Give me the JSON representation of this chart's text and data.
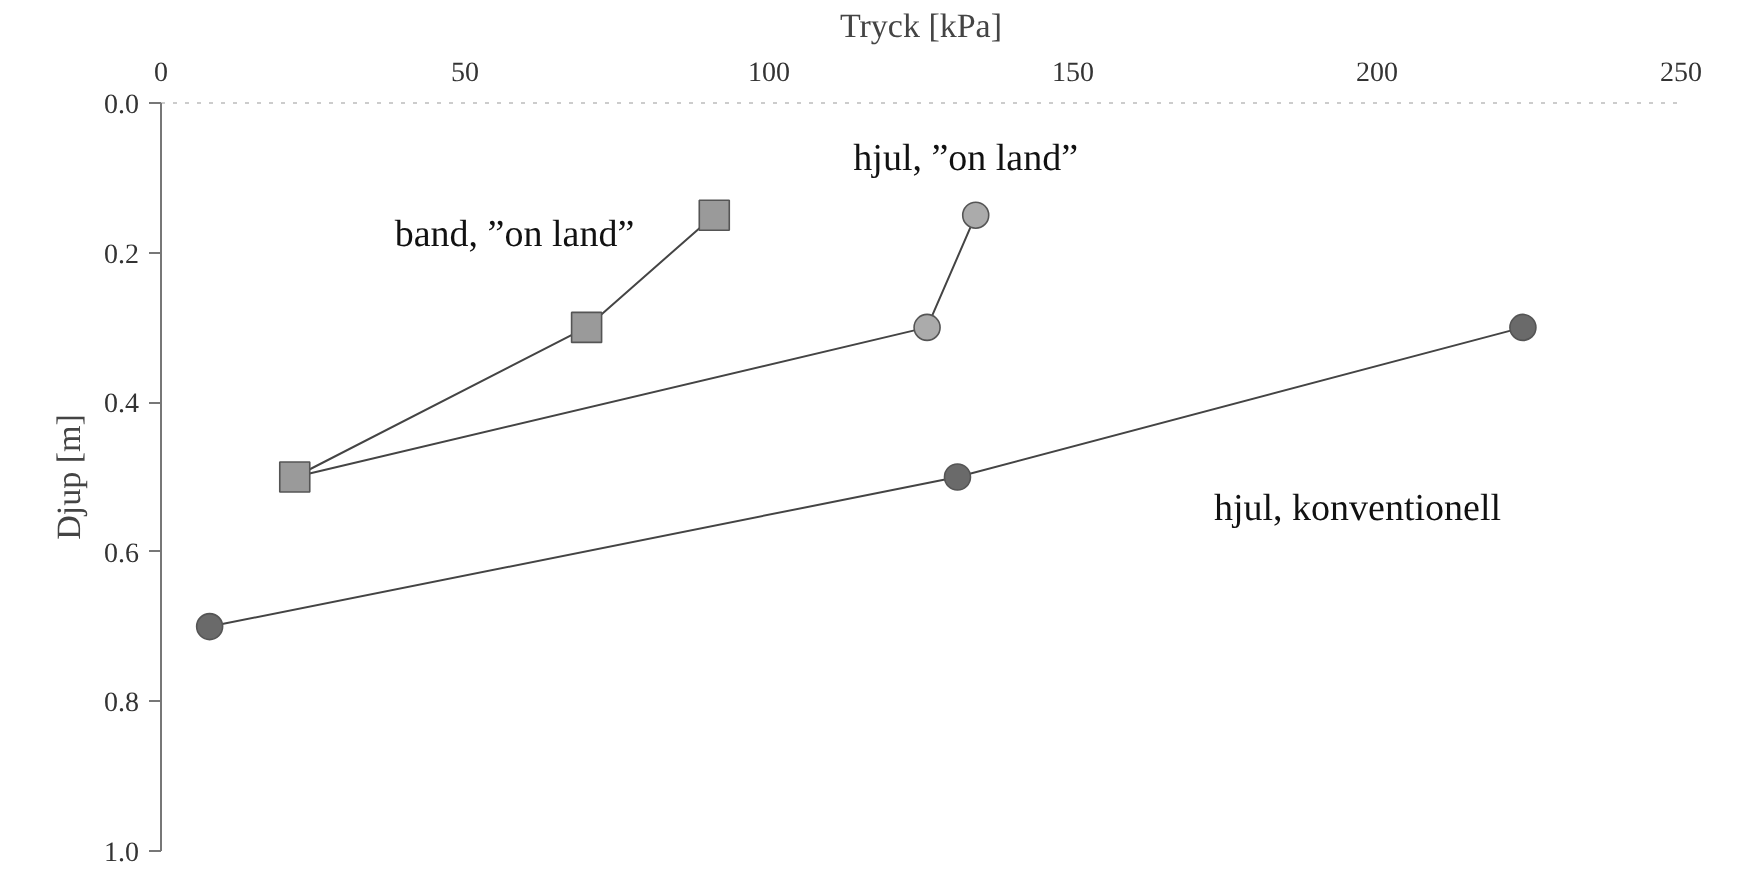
{
  "chart_data": {
    "type": "line",
    "xlabel": "Tryck [kPa]",
    "ylabel": "Djup [m]",
    "xlim": [
      0,
      250
    ],
    "xticks": [
      0,
      50,
      100,
      150,
      200,
      250
    ],
    "ylim": [
      1.0,
      0.0
    ],
    "yticks": [
      {
        "value": 0,
        "label": "0.0"
      },
      0.2,
      0.4,
      0.6,
      0.8,
      {
        "value": 1,
        "label": "1.0"
      }
    ],
    "grid": false,
    "legend": false,
    "line_style": "solid",
    "series": [
      {
        "name": "band, ”on land”",
        "color": "#9a9a9a",
        "marker": "square",
        "x": [
          91,
          70,
          22
        ],
        "values": [
          0.15,
          0.3,
          0.5
        ]
      },
      {
        "name": "hjul, ”on land”",
        "color": "#ababab",
        "marker": "circle",
        "x": [
          134,
          126,
          22
        ],
        "values": [
          0.15,
          0.3,
          0.5
        ]
      },
      {
        "name": "hjul, konventionell",
        "color": "#6a6a6a",
        "marker": "circle",
        "x": [
          224,
          131,
          8
        ],
        "values": [
          0.3,
          0.5,
          0.7
        ]
      }
    ]
  }
}
